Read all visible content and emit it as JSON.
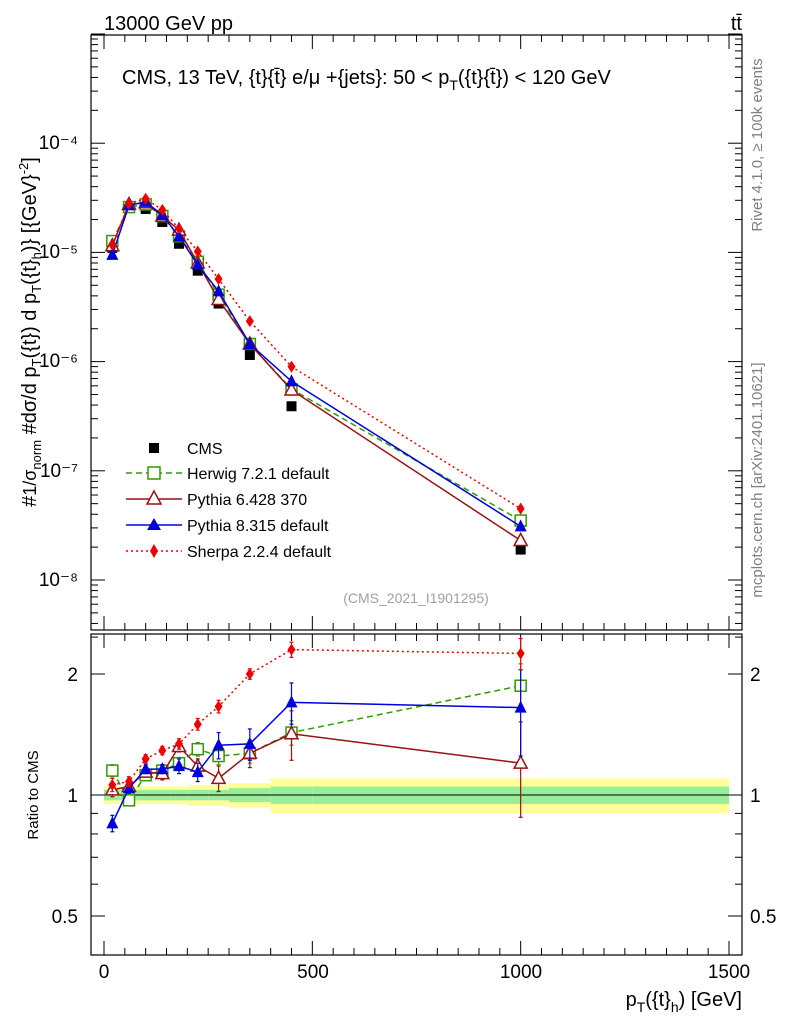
{
  "header": {
    "left": "13000 GeV pp",
    "right": "tt̄"
  },
  "side_labels": {
    "rivet": "Rivet 4.1.0, ≥ 100k events",
    "mcplots": "mcplots.cern.ch [arXiv:2401.10621]"
  },
  "chart_data": [
    {
      "type": "line",
      "title": "CMS, 13 TeV, {t}{t̄} e/μ +{jets}: 50 <  p_T({t}{t̄}) < 120 GeV",
      "ylabel": "#frac{1}{σ_norm} #frac{d²σ}{d p_T({t}) d p_T({t}_h)} [{GeV}⁻²]",
      "yscale": "log",
      "ylim": [
        3e-09,
        0.001
      ],
      "xlim": [
        -30,
        1510
      ],
      "y_tick_labels": [
        "10⁻⁸",
        "10⁻⁷",
        "10⁻⁶",
        "10⁻⁵",
        "10⁻⁴"
      ],
      "watermark": "(CMS_2021_I1901295)",
      "x": [
        20,
        60,
        100,
        140,
        180,
        225,
        275,
        350,
        450,
        1000
      ],
      "series": [
        {
          "name": "CMS",
          "color": "#000000",
          "marker": "filled-square",
          "values": [
            1.1e-05,
            2.6e-05,
            2.5e-05,
            1.9e-05,
            1.2e-05,
            6.8e-06,
            3.4e-06,
            1.15e-06,
            3.9e-07,
            1.9e-08
          ]
        },
        {
          "name": "Herwig 7.2.1 default",
          "color": "#339900",
          "marker": "open-square",
          "dash": "dashed",
          "values": [
            1.27e-05,
            2.6e-05,
            2.75e-05,
            2.15e-05,
            1.4e-05,
            8.2e-06,
            4.1e-06,
            1.45e-06,
            5.6e-07,
            3.5e-08
          ]
        },
        {
          "name": "Pythia 6.428 370",
          "color": "#991111",
          "marker": "open-triangle",
          "dash": "solid",
          "values": [
            1.15e-05,
            2.75e-05,
            2.85e-05,
            2.15e-05,
            1.6e-05,
            8e-06,
            3.7e-06,
            1.45e-06,
            5.5e-07,
            2.3e-08
          ]
        },
        {
          "name": "Pythia 8.315 default",
          "color": "#0000dd",
          "marker": "filled-triangle",
          "dash": "solid",
          "values": [
            9.5e-06,
            2.7e-05,
            2.9e-05,
            2.2e-05,
            1.4e-05,
            7.7e-06,
            4.4e-06,
            1.45e-06,
            6.6e-07,
            3.1e-08
          ]
        },
        {
          "name": "Sherpa 2.2.4 default",
          "color": "#ee0000",
          "marker": "filled-diamond",
          "dash": "dotted",
          "values": [
            1.17e-05,
            2.8e-05,
            3.1e-05,
            2.45e-05,
            1.65e-05,
            1.02e-05,
            5.7e-06,
            2.35e-06,
            9e-07,
            4.5e-08
          ]
        }
      ]
    },
    {
      "type": "line",
      "title": "",
      "xlabel": "p_T({t}_h) [GeV]",
      "ylabel": "Ratio to CMS",
      "yscale": "log",
      "ylim": [
        0.4,
        2.4
      ],
      "xlim": [
        -30,
        1510
      ],
      "x_tick_labels": [
        "0",
        "500",
        "1000",
        "1500"
      ],
      "y_tick_labels": [
        "0.5",
        "1",
        "2"
      ],
      "x": [
        20,
        60,
        100,
        140,
        180,
        225,
        275,
        350,
        450,
        1000
      ],
      "bins": [
        0,
        40,
        80,
        120,
        160,
        200,
        250,
        300,
        400,
        500,
        1500
      ],
      "band_inner": [
        0.03,
        0.03,
        0.03,
        0.03,
        0.03,
        0.03,
        0.03,
        0.04,
        0.05,
        0.05
      ],
      "band_outer": [
        0.05,
        0.05,
        0.05,
        0.05,
        0.05,
        0.06,
        0.06,
        0.07,
        0.1,
        0.1
      ],
      "series": [
        {
          "name": "Herwig 7.2.1 default",
          "values": [
            1.15,
            0.97,
            1.12,
            1.15,
            1.2,
            1.3,
            1.25,
            1.27,
            1.43,
            1.87
          ],
          "errors": [
            0.04,
            0.03,
            0.03,
            0.03,
            0.04,
            0.05,
            0.06,
            0.07,
            0.1,
            0.25
          ]
        },
        {
          "name": "Pythia 6.428 370",
          "values": [
            1.03,
            1.05,
            1.14,
            1.13,
            1.32,
            1.18,
            1.1,
            1.27,
            1.42,
            1.2
          ],
          "errors": [
            0.04,
            0.03,
            0.03,
            0.04,
            0.04,
            0.05,
            0.08,
            0.1,
            0.2,
            0.32
          ]
        },
        {
          "name": "Pythia 8.315 default",
          "values": [
            0.85,
            1.04,
            1.16,
            1.16,
            1.18,
            1.14,
            1.33,
            1.34,
            1.7,
            1.65
          ],
          "errors": [
            0.04,
            0.03,
            0.03,
            0.03,
            0.05,
            0.06,
            0.1,
            0.12,
            0.2,
            0.4
          ]
        },
        {
          "name": "Sherpa 2.2.4 default",
          "values": [
            1.06,
            1.08,
            1.23,
            1.29,
            1.34,
            1.5,
            1.66,
            2.0,
            2.3,
            2.25
          ],
          "errors": [
            0.04,
            0.03,
            0.03,
            0.03,
            0.04,
            0.05,
            0.06,
            0.06,
            0.1,
            0.2
          ]
        }
      ]
    }
  ]
}
